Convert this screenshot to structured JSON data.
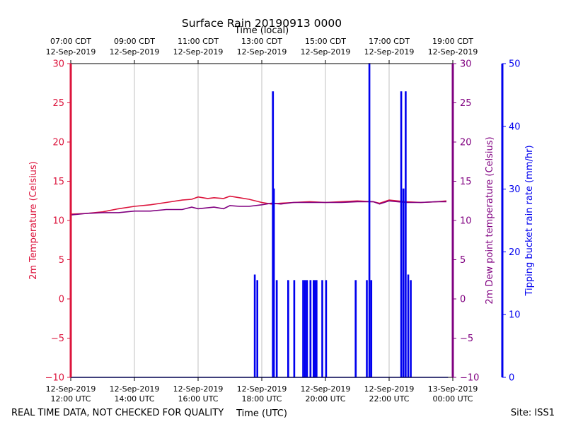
{
  "chart_data": {
    "type": "line",
    "title": "Surface Rain 20190913 0000",
    "top_axis_title": "Time (local)",
    "xlabel": "Time (UTC)",
    "ylabel_left": "2m Temperature (Celsius)",
    "ylabel_right": "2m Dew point temperature (Celsius)",
    "ylabel_far_right": "Tipping bucket rain rate (mm/hr)",
    "footer_left": "REAL TIME DATA, NOT CHECKED FOR QUALITY",
    "footer_right": "Site: ISS1",
    "x_unit_hours_utc": [
      12,
      24
    ],
    "ylim_temperature": [
      -10,
      30
    ],
    "ylim_rain": [
      0,
      50
    ],
    "grid": "vertical",
    "bottom_ticks": [
      {
        "hour": 12,
        "line1": "12-Sep-2019",
        "line2": "12:00 UTC"
      },
      {
        "hour": 14,
        "line1": "12-Sep-2019",
        "line2": "14:00 UTC"
      },
      {
        "hour": 16,
        "line1": "12-Sep-2019",
        "line2": "16:00 UTC"
      },
      {
        "hour": 18,
        "line1": "12-Sep-2019",
        "line2": "18:00 UTC"
      },
      {
        "hour": 20,
        "line1": "12-Sep-2019",
        "line2": "20:00 UTC"
      },
      {
        "hour": 22,
        "line1": "12-Sep-2019",
        "line2": "22:00 UTC"
      },
      {
        "hour": 24,
        "line1": "13-Sep-2019",
        "line2": "00:00 UTC"
      }
    ],
    "top_ticks": [
      {
        "hour": 12,
        "line1": "07:00 CDT",
        "line2": "12-Sep-2019"
      },
      {
        "hour": 14,
        "line1": "09:00 CDT",
        "line2": "12-Sep-2019"
      },
      {
        "hour": 16,
        "line1": "11:00 CDT",
        "line2": "12-Sep-2019"
      },
      {
        "hour": 18,
        "line1": "13:00 CDT",
        "line2": "12-Sep-2019"
      },
      {
        "hour": 20,
        "line1": "15:00 CDT",
        "line2": "12-Sep-2019"
      },
      {
        "hour": 22,
        "line1": "17:00 CDT",
        "line2": "12-Sep-2019"
      },
      {
        "hour": 24,
        "line1": "19:00 CDT",
        "line2": "12-Sep-2019"
      }
    ],
    "temp_ticks": [
      -10,
      -5,
      0,
      5,
      10,
      15,
      20,
      25,
      30
    ],
    "temp_tick_labels": [
      "−10",
      "−5",
      "0",
      "5",
      "10",
      "15",
      "20",
      "25",
      "30"
    ],
    "rain_ticks": [
      0,
      10,
      20,
      30,
      40,
      50
    ],
    "rain_tick_labels": [
      "0",
      "10",
      "20",
      "30",
      "40",
      "50"
    ],
    "series": [
      {
        "key": "temperature",
        "color": "#dc143c",
        "points": [
          [
            12.0,
            10.8
          ],
          [
            12.5,
            10.9
          ],
          [
            13.0,
            11.1
          ],
          [
            13.5,
            11.5
          ],
          [
            14.0,
            11.8
          ],
          [
            14.5,
            12.0
          ],
          [
            15.0,
            12.3
          ],
          [
            15.5,
            12.6
          ],
          [
            15.8,
            12.7
          ],
          [
            16.0,
            13.0
          ],
          [
            16.3,
            12.8
          ],
          [
            16.5,
            12.9
          ],
          [
            16.8,
            12.8
          ],
          [
            17.0,
            13.1
          ],
          [
            17.3,
            12.9
          ],
          [
            17.6,
            12.7
          ],
          [
            18.0,
            12.3
          ],
          [
            18.3,
            12.1
          ],
          [
            18.6,
            12.2
          ],
          [
            19.0,
            12.3
          ],
          [
            19.5,
            12.4
          ],
          [
            20.0,
            12.3
          ],
          [
            20.5,
            12.4
          ],
          [
            21.0,
            12.5
          ],
          [
            21.5,
            12.4
          ],
          [
            21.7,
            12.2
          ],
          [
            22.0,
            12.6
          ],
          [
            22.5,
            12.4
          ],
          [
            23.0,
            12.3
          ],
          [
            23.5,
            12.4
          ],
          [
            23.8,
            12.5
          ]
        ]
      },
      {
        "key": "dewpoint",
        "color": "#800080",
        "points": [
          [
            12.0,
            10.7
          ],
          [
            12.5,
            10.9
          ],
          [
            13.0,
            11.0
          ],
          [
            13.5,
            11.0
          ],
          [
            14.0,
            11.2
          ],
          [
            14.5,
            11.2
          ],
          [
            15.0,
            11.4
          ],
          [
            15.5,
            11.4
          ],
          [
            15.8,
            11.7
          ],
          [
            16.0,
            11.5
          ],
          [
            16.5,
            11.7
          ],
          [
            16.8,
            11.5
          ],
          [
            17.0,
            11.9
          ],
          [
            17.3,
            11.8
          ],
          [
            17.6,
            11.8
          ],
          [
            18.0,
            12.0
          ],
          [
            18.3,
            12.2
          ],
          [
            18.6,
            12.1
          ],
          [
            19.0,
            12.3
          ],
          [
            19.5,
            12.3
          ],
          [
            20.0,
            12.3
          ],
          [
            20.5,
            12.3
          ],
          [
            21.0,
            12.4
          ],
          [
            21.5,
            12.4
          ],
          [
            21.7,
            12.1
          ],
          [
            22.0,
            12.5
          ],
          [
            22.5,
            12.3
          ],
          [
            23.0,
            12.3
          ],
          [
            23.5,
            12.4
          ],
          [
            23.8,
            12.4
          ]
        ]
      },
      {
        "key": "rain_rate",
        "color": "#0000ee",
        "spikes": [
          [
            17.78,
            16.3
          ],
          [
            17.86,
            15.4
          ],
          [
            18.35,
            45.5
          ],
          [
            18.38,
            30.0
          ],
          [
            18.47,
            15.4
          ],
          [
            18.83,
            15.4
          ],
          [
            19.02,
            15.4
          ],
          [
            19.3,
            15.4
          ],
          [
            19.36,
            15.4
          ],
          [
            19.42,
            15.4
          ],
          [
            19.53,
            15.4
          ],
          [
            19.63,
            15.4
          ],
          [
            19.68,
            15.4
          ],
          [
            19.72,
            15.4
          ],
          [
            19.9,
            15.4
          ],
          [
            20.02,
            15.4
          ],
          [
            20.95,
            15.4
          ],
          [
            21.3,
            15.4
          ],
          [
            21.38,
            50.0
          ],
          [
            21.44,
            15.4
          ],
          [
            22.38,
            45.5
          ],
          [
            22.45,
            30.0
          ],
          [
            22.52,
            45.5
          ],
          [
            22.6,
            16.3
          ],
          [
            22.68,
            15.4
          ]
        ]
      }
    ]
  }
}
